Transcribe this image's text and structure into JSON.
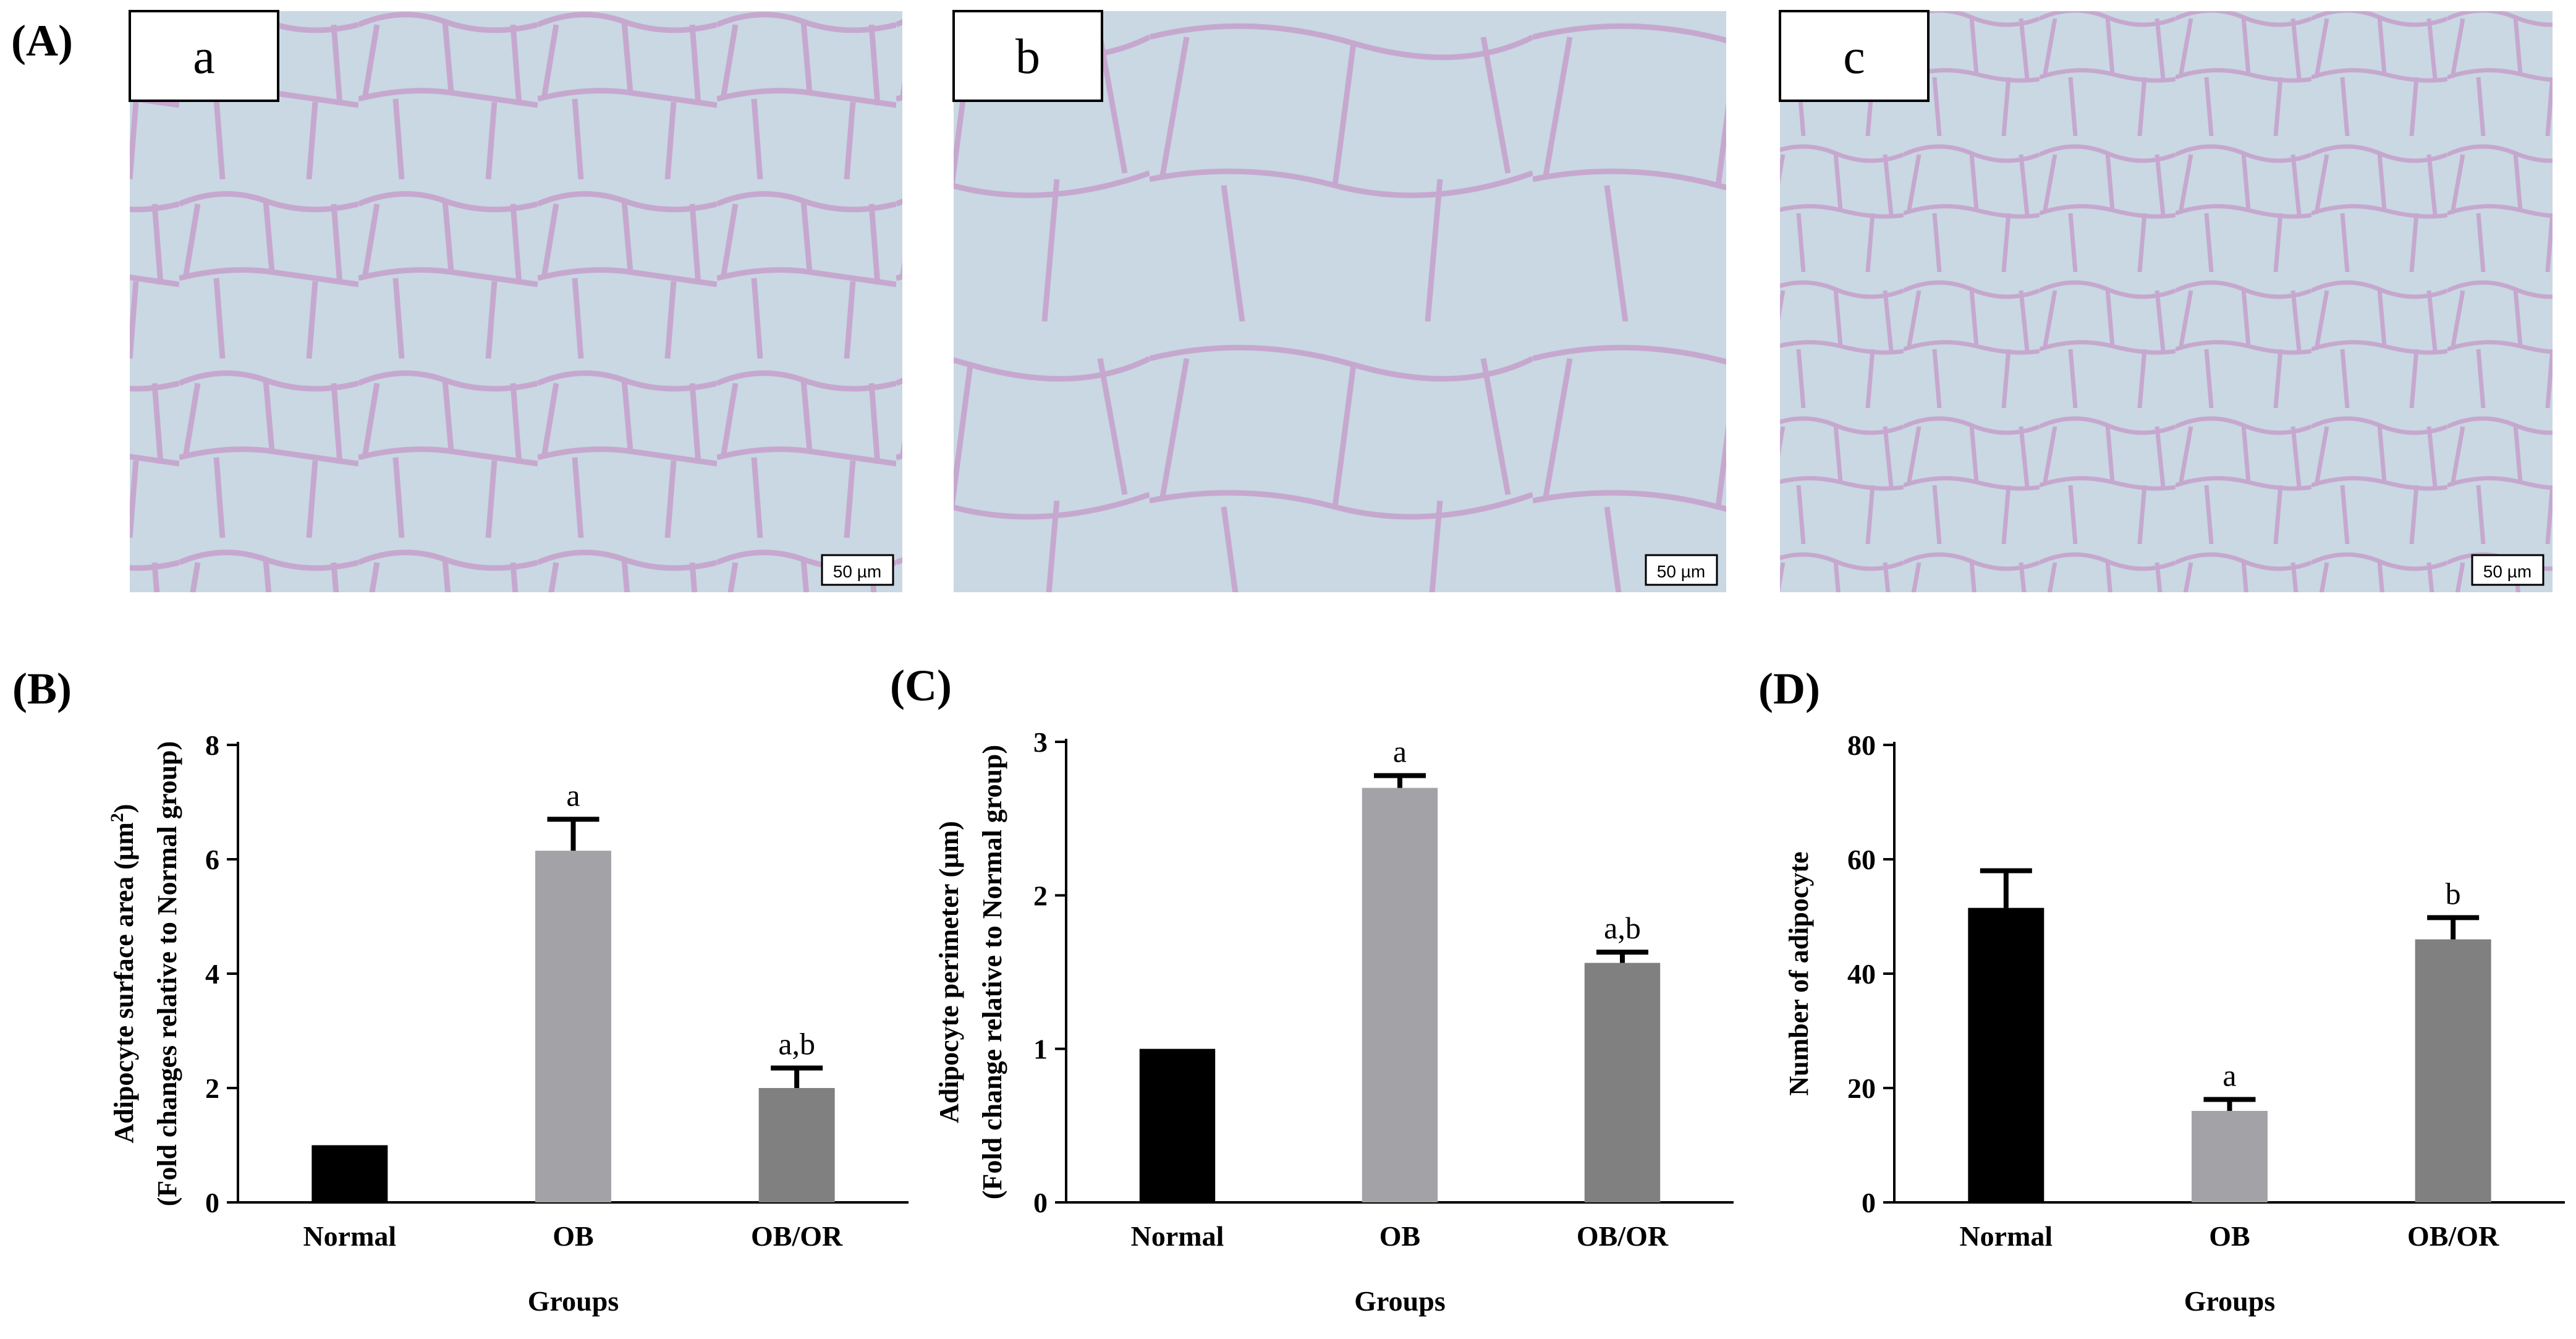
{
  "panel_A": {
    "label": "(A)",
    "images": [
      {
        "label": "a",
        "scale_bar": "50 µm"
      },
      {
        "label": "b",
        "scale_bar": "50 µm"
      },
      {
        "label": "c",
        "scale_bar": "50 µm"
      }
    ]
  },
  "colors": {
    "Normal": "#000000",
    "OB": "#a3a2a7",
    "OB/OR": "#808080",
    "cell_wall": "#c6a8cf",
    "cell_interior": "#c9d8e3"
  },
  "chart_data": [
    {
      "panel": "(B)",
      "type": "bar",
      "categories": [
        "Normal",
        "OB",
        "OB/OR"
      ],
      "values": [
        1.0,
        6.15,
        2.0
      ],
      "errors": [
        0,
        0.55,
        0.35
      ],
      "annotations": [
        "",
        "a",
        "a,b"
      ],
      "ylabel_line1": "Adipocyte surface area (µm",
      "ylabel_sup": "2",
      "ylabel_line1_end": ")",
      "ylabel_line2": "(Fold changes relative to Normal group)",
      "xlabel": "Groups",
      "ylim": [
        0,
        8
      ],
      "yticks": [
        "0",
        "2",
        "4",
        "6",
        "8"
      ]
    },
    {
      "panel": "(C)",
      "type": "bar",
      "categories": [
        "Normal",
        "OB",
        "OB/OR"
      ],
      "values": [
        1.0,
        2.7,
        1.56
      ],
      "errors": [
        0,
        0.08,
        0.07
      ],
      "annotations": [
        "",
        "a",
        "a,b"
      ],
      "ylabel_line1": "Adipocyte perimeter (µm)",
      "ylabel_line2": "(Fold change relative to Normal group)",
      "xlabel": "Groups",
      "ylim": [
        0,
        3
      ],
      "yticks": [
        "0",
        "1",
        "2",
        "3"
      ]
    },
    {
      "panel": "(D)",
      "type": "bar",
      "categories": [
        "Normal",
        "OB",
        "OB/OR"
      ],
      "values": [
        51.5,
        16.0,
        46.0
      ],
      "errors": [
        6.5,
        2.0,
        3.8
      ],
      "annotations": [
        "",
        "a",
        "b"
      ],
      "ylabel_line1": "Number of adipocyte",
      "xlabel": "Groups",
      "ylim": [
        0,
        80
      ],
      "yticks": [
        "0",
        "20",
        "40",
        "60",
        "80"
      ]
    }
  ]
}
